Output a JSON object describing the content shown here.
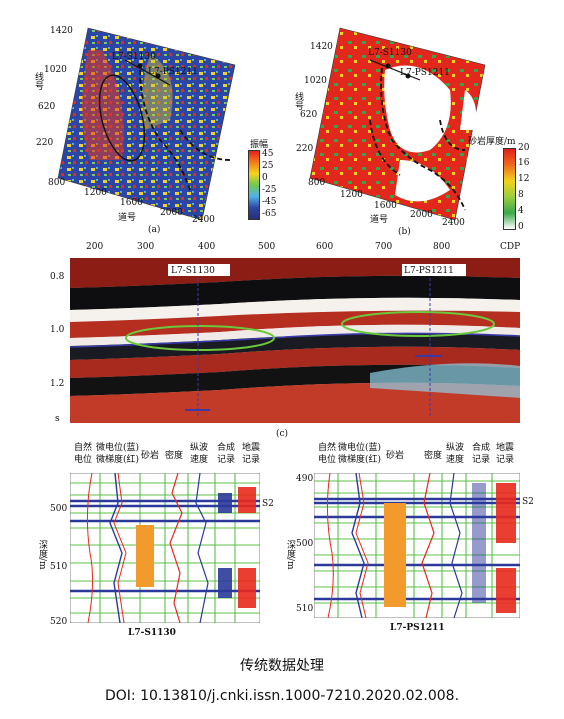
{
  "figure": {
    "caption": "传统数据处理",
    "doi": "DOI: 10.13810/j.cnki.issn.1000-7210.2020.02.008."
  },
  "map_a": {
    "tag": "(a)",
    "ylabel": "线号",
    "xlabel": "道号",
    "yticks": [
      "1420",
      "1020",
      "620",
      "220"
    ],
    "xticks": [
      "800",
      "1200",
      "1600",
      "2000",
      "2400"
    ],
    "well1": "L7-S1130",
    "well2": "L7-PS1211",
    "colorbar_title": "振幅",
    "colorbar_ticks": [
      "45",
      "25",
      "0",
      "-25",
      "-45",
      "-65"
    ]
  },
  "map_b": {
    "tag": "(b)",
    "ylabel": "线号",
    "xlabel": "道号",
    "yticks": [
      "1420",
      "1020",
      "620",
      "220"
    ],
    "xticks": [
      "800",
      "1200",
      "1600",
      "2000",
      "2400"
    ],
    "well1": "L7-S1130",
    "well2": "L7-PS1211",
    "colorbar_title": "砂岩厚度/m",
    "colorbar_ticks": [
      "20",
      "16",
      "12",
      "8",
      "4",
      "0"
    ]
  },
  "section_c": {
    "tag": "(c)",
    "cdp_label": "CDP",
    "xticks": [
      "200",
      "300",
      "400",
      "500",
      "600",
      "700",
      "800"
    ],
    "yticks": [
      "0.8",
      "1.0",
      "1.2"
    ],
    "yunit": "s",
    "well1": "L7-S1130",
    "well2": "L7-PS1211"
  },
  "logs_left": {
    "well": "L7-S1130",
    "col1": "自然电位",
    "col2": "微电位(蓝) 微梯度(红)",
    "col3": "砂岩",
    "col4": "密度",
    "col5": "纵波速度",
    "col6": "合成记录",
    "col7": "地震记录",
    "depth_label": "深度/m",
    "depth_ticks": [
      "500",
      "510",
      "520"
    ],
    "marker": "S2"
  },
  "logs_right": {
    "well": "L7-PS1211",
    "col1": "自然电位",
    "col2": "微电位(蓝) 微梯度(红)",
    "col3": "砂岩",
    "col4": "密度",
    "col5": "纵波速度",
    "col6": "合成记录",
    "col7": "地震记录",
    "depth_label": "深度/m",
    "depth_ticks": [
      "490",
      "500",
      "510"
    ],
    "marker": "S2"
  },
  "colors": {
    "red": "#e8291c",
    "blue": "#2b3a9a",
    "yellow": "#f5d31a",
    "green": "#34a84a",
    "orange": "#f39a2c",
    "log_green": "#5cc04a"
  }
}
